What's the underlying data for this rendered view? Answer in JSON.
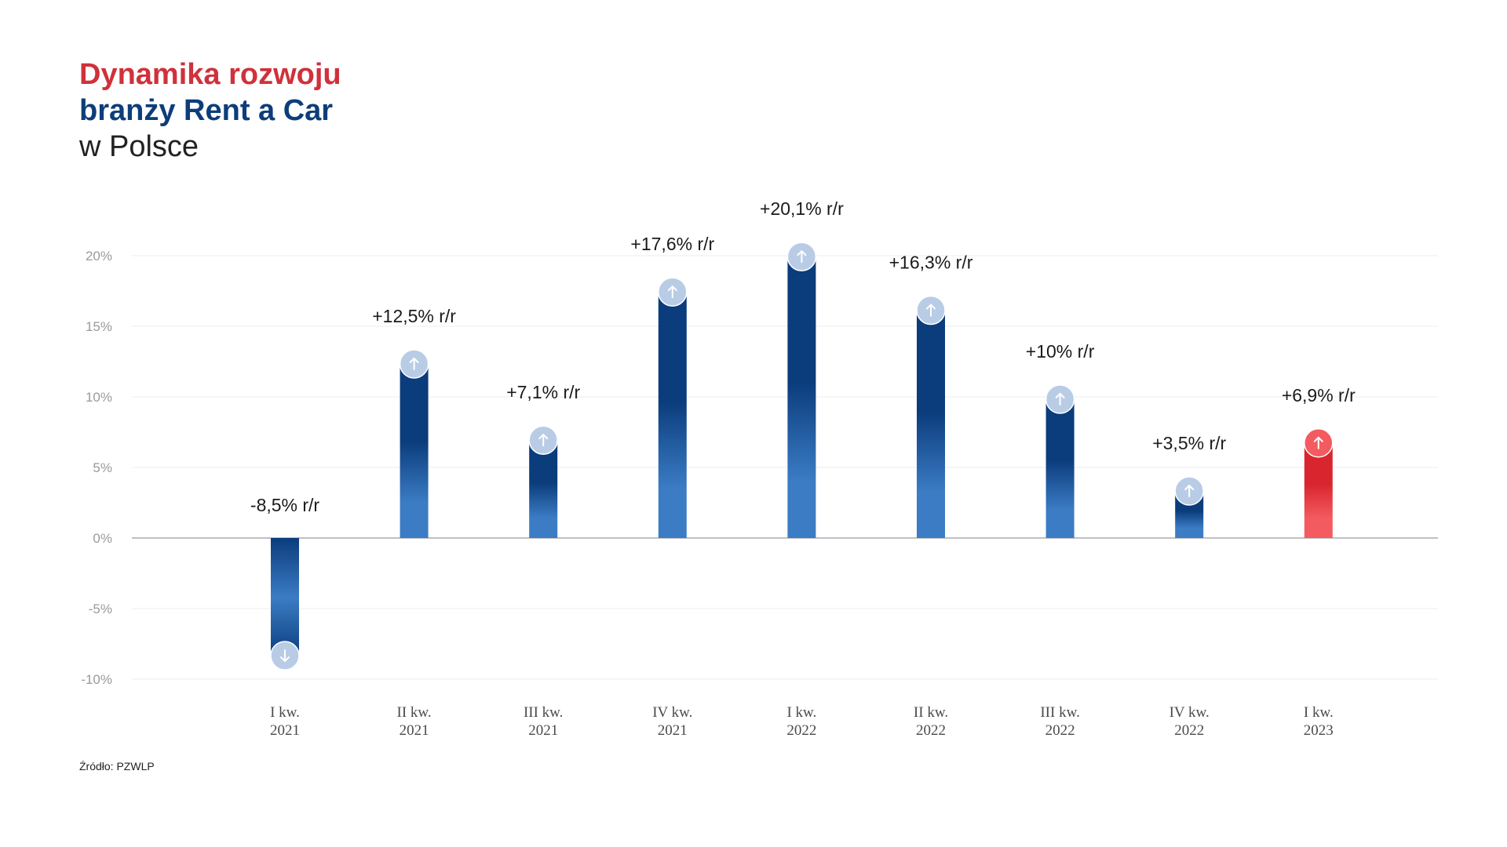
{
  "title": {
    "line1": "Dynamika rozwoju",
    "line2": "branży Rent a Car",
    "line3": "w Polsce"
  },
  "source": "Źródło: PZWLP",
  "colors": {
    "title_red": "#d0313b",
    "title_blue": "#0d3d7a",
    "bar_dark": "#0b3c7c",
    "bar_light": "#3b7cc4",
    "highlight_bar_dark": "#d9262e",
    "highlight_bar_light": "#f35b60",
    "marker_fill": "#b9cce6"
  },
  "chart_data": {
    "type": "bar",
    "categories": [
      [
        "I kw.",
        "2021"
      ],
      [
        "II kw.",
        "2021"
      ],
      [
        "III kw.",
        "2021"
      ],
      [
        "IV kw.",
        "2021"
      ],
      [
        "I kw.",
        "2022"
      ],
      [
        "II kw.",
        "2022"
      ],
      [
        "III kw.",
        "2022"
      ],
      [
        "IV kw.",
        "2022"
      ],
      [
        "I kw.",
        "2023"
      ]
    ],
    "values": [
      -8.5,
      12.5,
      7.1,
      17.6,
      20.1,
      16.3,
      10,
      3.5,
      6.9
    ],
    "data_labels": [
      "-8,5% r/r",
      "+12,5% r/r",
      "+7,1% r/r",
      "+17,6% r/r",
      "+20,1% r/r",
      "+16,3% r/r",
      "+10% r/r",
      "+3,5% r/r",
      "+6,9% r/r"
    ],
    "highlight_index": 8,
    "y_ticks": [
      20,
      15,
      10,
      5,
      0,
      -5,
      -10
    ],
    "y_tick_labels": [
      "20%",
      "15%",
      "10%",
      "5%",
      "0%",
      "-5%",
      "-10%"
    ],
    "ylim": [
      -10,
      20
    ],
    "grid": true,
    "legend": "none",
    "marker_icons": [
      "arrow-down-icon",
      "arrow-up-icon"
    ]
  }
}
